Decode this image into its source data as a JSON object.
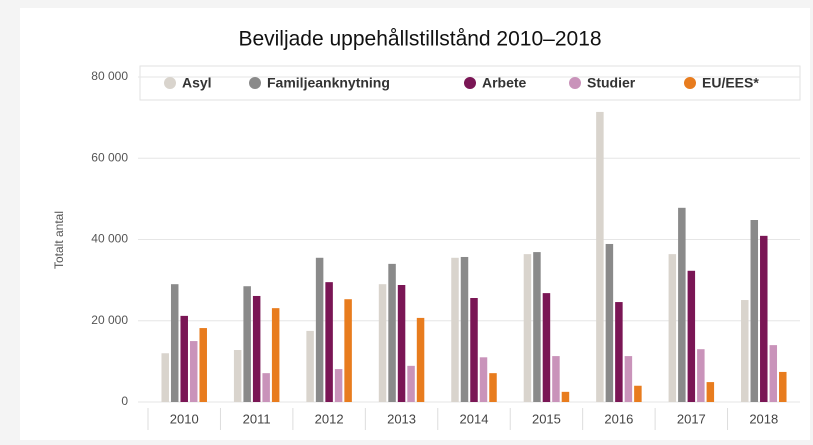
{
  "chart_data": {
    "type": "bar",
    "title": "Beviljade uppehållstillstånd 2010–2018",
    "y_label": "Totalt antal",
    "categories": [
      "2010",
      "2011",
      "2012",
      "2013",
      "2014",
      "2015",
      "2016",
      "2017",
      "2018"
    ],
    "series": [
      {
        "name": "Asyl",
        "color": "#d9d4cd",
        "values": [
          12000,
          12800,
          17500,
          29000,
          35500,
          36400,
          71400,
          36400,
          25100
        ]
      },
      {
        "name": "Familjeanknytning",
        "color": "#8a8a8a",
        "values": [
          29000,
          28500,
          35500,
          34000,
          35700,
          36900,
          38900,
          47800,
          44800
        ]
      },
      {
        "name": "Arbete",
        "color": "#7a1655",
        "values": [
          21200,
          26100,
          29500,
          28800,
          25600,
          26800,
          24600,
          32300,
          40900
        ]
      },
      {
        "name": "Studier",
        "color": "#c993ba",
        "values": [
          15000,
          7100,
          8100,
          8900,
          11000,
          11300,
          11300,
          13000,
          14000
        ]
      },
      {
        "name": "EU/EES*",
        "color": "#e87c1e",
        "values": [
          18200,
          23100,
          25300,
          20700,
          7100,
          2500,
          4000,
          4900,
          7400
        ]
      }
    ],
    "ylim": [
      0,
      80000
    ],
    "yticks": [
      0,
      {
        "value": 20000,
        "label": "20 000"
      },
      {
        "value": 40000,
        "label": "40 000"
      },
      {
        "value": 60000,
        "label": "60 000"
      },
      {
        "value": 80000,
        "label": "80 000"
      }
    ],
    "grid": true,
    "legend": "top"
  }
}
